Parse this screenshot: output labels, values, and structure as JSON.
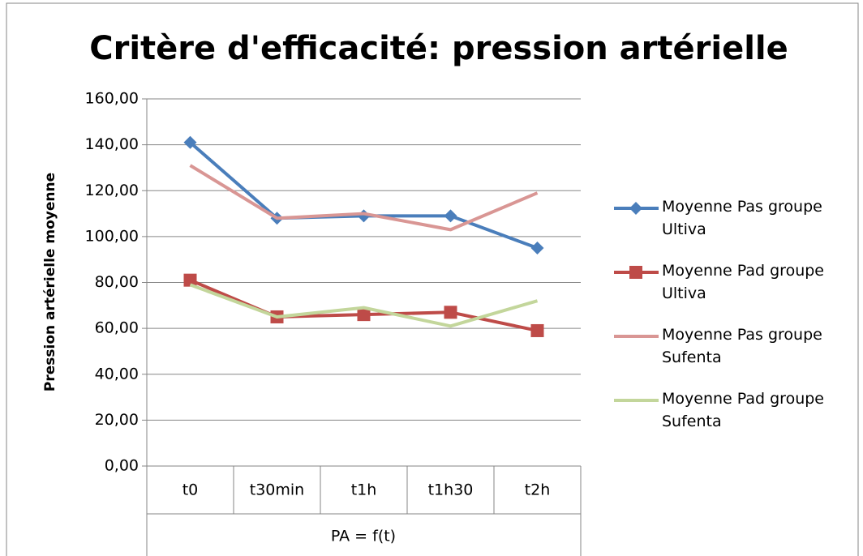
{
  "chart_data": {
    "type": "line",
    "title": "Critère d'efficacité: pression artérielle",
    "x_label": "PA = f(t)",
    "y_label": "Pression artérielle moyenne",
    "categories": [
      "t0",
      "t30min",
      "t1h",
      "t1h30",
      "t2h"
    ],
    "series": [
      {
        "name": "Moyenne Pas groupe Ultiva",
        "color": "#4a7ebb",
        "marker": "diamond",
        "values": [
          141,
          108,
          109,
          109,
          95
        ]
      },
      {
        "name": "Moyenne Pad groupe Ultiva",
        "color": "#be4b48",
        "marker": "square",
        "values": [
          81,
          65,
          66,
          67,
          59
        ]
      },
      {
        "name": "Moyenne Pas groupe Sufenta",
        "color": "#d99694",
        "marker": "none",
        "values": [
          131,
          108,
          110,
          103,
          119
        ]
      },
      {
        "name": "Moyenne Pad groupe Sufenta",
        "color": "#c3d69b",
        "marker": "none",
        "values": [
          79,
          65,
          69,
          61,
          72
        ]
      }
    ],
    "ylim": [
      0,
      160
    ],
    "yticks": [
      {
        "value": 0,
        "label": "0,00"
      },
      {
        "value": 20,
        "label": "20,00"
      },
      {
        "value": 40,
        "label": "40,00"
      },
      {
        "value": 60,
        "label": "60,00"
      },
      {
        "value": 80,
        "label": "80,00"
      },
      {
        "value": 100,
        "label": "100,00"
      },
      {
        "value": 120,
        "label": "120,00"
      },
      {
        "value": 140,
        "label": "140,00"
      },
      {
        "value": 160,
        "label": "160,00"
      }
    ],
    "grid": true,
    "legend": "right"
  }
}
